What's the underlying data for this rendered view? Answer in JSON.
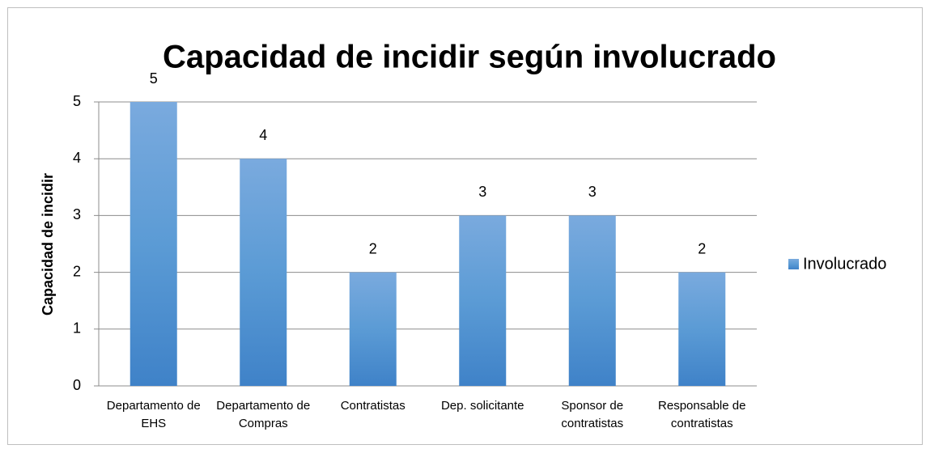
{
  "chart_data": {
    "type": "bar",
    "title": "Capacidad de incidir según involucrado",
    "y_label": "Capacidad de incidir",
    "categories": [
      "Departamento de EHS",
      "Departamento de Compras",
      "Contratistas",
      "Dep. solicitante",
      "Sponsor de contratistas",
      "Responsable de contratistas"
    ],
    "series": [
      {
        "name": "Involucrado",
        "color": "#5b9bd5",
        "values": [
          5,
          4,
          2,
          3,
          3,
          2
        ]
      }
    ],
    "ylim": [
      0,
      5
    ],
    "yticks": [
      0,
      1,
      2,
      3,
      4,
      5
    ],
    "grid": true,
    "legend": "right",
    "data_labels": true
  }
}
